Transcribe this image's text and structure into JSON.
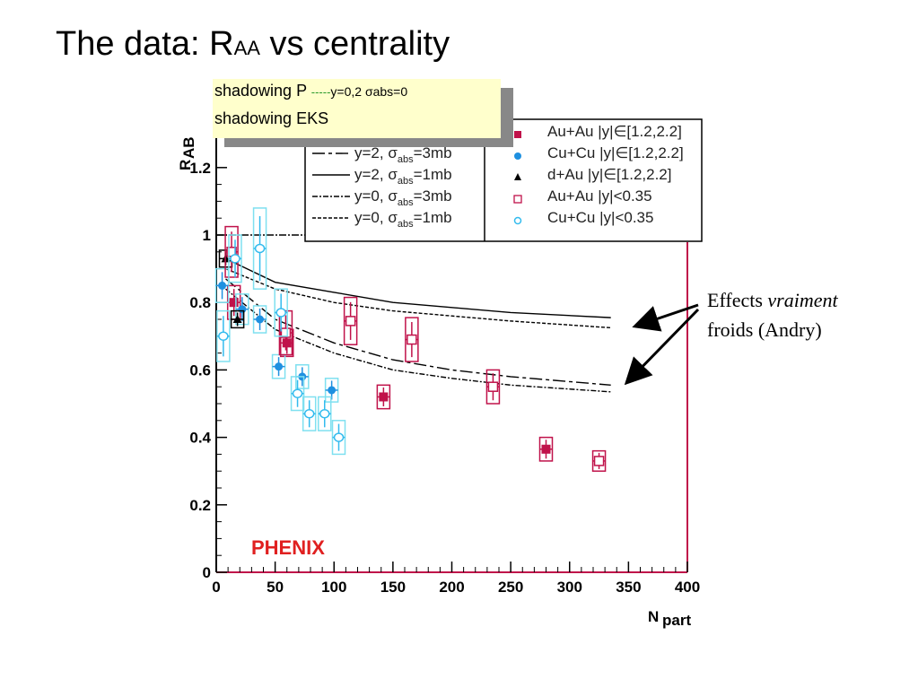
{
  "title": {
    "main": "The data: R",
    "sub": "AA",
    "rest": " vs centrality"
  },
  "yellow_box": {
    "line1": "shadowing P",
    "line1_dash": "-----",
    "line1_rest": "y=0,2 σabs=0",
    "line2": "shadowing EKS"
  },
  "annotation": {
    "line1_a": "Effects ",
    "line1_b": "vraiment",
    "line2": "froids (Andry)"
  },
  "colors": {
    "auau": "#c0124a",
    "cucu_fwd": "#1e90e0",
    "cucu_mid": "#33bbee",
    "box_cu": "#7fe0f0",
    "curve": "#000000",
    "phenix": "#e02020"
  },
  "chart_data": {
    "type": "scatter",
    "xlabel": "N",
    "xlabel_sub": "part",
    "ylabel": "R",
    "ylabel_sub": "AB",
    "xlim": [
      0,
      400
    ],
    "ylim": [
      0,
      1.25
    ],
    "xticks": [
      "0",
      "50",
      "100",
      "150",
      "200",
      "250",
      "300",
      "350",
      "400"
    ],
    "yticks": [
      "0",
      "0.2",
      "0.4",
      "0.6",
      "0.8",
      "1",
      "1.2"
    ],
    "watermark": "PHENIX",
    "legend_curves": [
      {
        "label": "y=2, σ",
        "sub": "abs",
        "rest": "=3mb",
        "dash": "14,4,4,4"
      },
      {
        "label": "y=2, σ",
        "sub": "abs",
        "rest": "=1mb",
        "dash": ""
      },
      {
        "label": "y=0, σ",
        "sub": "abs",
        "rest": "=3mb",
        "dash": "6,2,2,2"
      },
      {
        "label": "y=0, σ",
        "sub": "abs",
        "rest": "=1mb",
        "dash": "4,2"
      }
    ],
    "legend_points": [
      {
        "label": "Au+Au |y|∈[1.2,2.2]",
        "marker": "filled-square"
      },
      {
        "label": "Cu+Cu |y|∈[1.2,2.2]",
        "marker": "filled-circle"
      },
      {
        "label": "d+Au |y|∈[1.2,2.2]",
        "marker": "triangle"
      },
      {
        "label": "Au+Au |y|<0.35",
        "marker": "open-square"
      },
      {
        "label": "Cu+Cu |y|<0.35",
        "marker": "open-circle"
      }
    ],
    "curves": [
      {
        "name": "y=2, σabs=3mb",
        "x": [
          8,
          50,
          100,
          150,
          200,
          250,
          335
        ],
        "y": [
          0.87,
          0.75,
          0.68,
          0.63,
          0.6,
          0.58,
          0.555
        ]
      },
      {
        "name": "y=2, σabs=1mb",
        "x": [
          8,
          50,
          100,
          150,
          200,
          250,
          335
        ],
        "y": [
          0.93,
          0.86,
          0.83,
          0.8,
          0.785,
          0.77,
          0.755
        ]
      },
      {
        "name": "y=0, σabs=3mb",
        "x": [
          8,
          50,
          100,
          150,
          200,
          250,
          335
        ],
        "y": [
          0.84,
          0.72,
          0.65,
          0.6,
          0.575,
          0.555,
          0.535
        ]
      },
      {
        "name": "y=0, σabs=1mb",
        "x": [
          8,
          50,
          100,
          150,
          200,
          250,
          335
        ],
        "y": [
          0.9,
          0.84,
          0.8,
          0.775,
          0.76,
          0.745,
          0.725
        ]
      },
      {
        "name": "shadowing P y=0,2 σabs=0",
        "x": [
          0,
          80
        ],
        "y": [
          1.0,
          1.0
        ]
      }
    ],
    "series": [
      {
        "name": "Au+Au |y|∈[1.2,2.2]",
        "x": [
          15,
          60,
          142,
          280
        ],
        "y": [
          0.8,
          0.68,
          0.52,
          0.365
        ],
        "sys": [
          0.1,
          0.08,
          0.07,
          0.07
        ]
      },
      {
        "name": "Cu+Cu |y|∈[1.2,2.2]",
        "x": [
          5,
          22,
          37,
          53,
          73,
          98
        ],
        "y": [
          0.85,
          0.78,
          0.75,
          0.61,
          0.58,
          0.54
        ],
        "sys": [
          0.1,
          0.09,
          0.08,
          0.07,
          0.07,
          0.07
        ]
      },
      {
        "name": "d+Au |y|∈[1.2,2.2]",
        "x": [
          8,
          18
        ],
        "y": [
          0.93,
          0.75
        ],
        "sys": [
          0.05,
          0.05
        ]
      },
      {
        "name": "Au+Au |y|<0.35",
        "x": [
          13,
          59,
          114,
          166,
          235,
          325
        ],
        "y": [
          0.95,
          0.71,
          0.745,
          0.69,
          0.55,
          0.33
        ],
        "sys": [
          0.15,
          0.13,
          0.14,
          0.13,
          0.1,
          0.06
        ]
      },
      {
        "name": "Cu+Cu |y|<0.35",
        "x": [
          6,
          16,
          37,
          55,
          69,
          79,
          92,
          104
        ],
        "y": [
          0.7,
          0.93,
          0.96,
          0.77,
          0.53,
          0.47,
          0.47,
          0.4
        ],
        "sys": [
          0.15,
          0.14,
          0.24,
          0.14,
          0.1,
          0.1,
          0.1,
          0.1
        ]
      }
    ]
  }
}
